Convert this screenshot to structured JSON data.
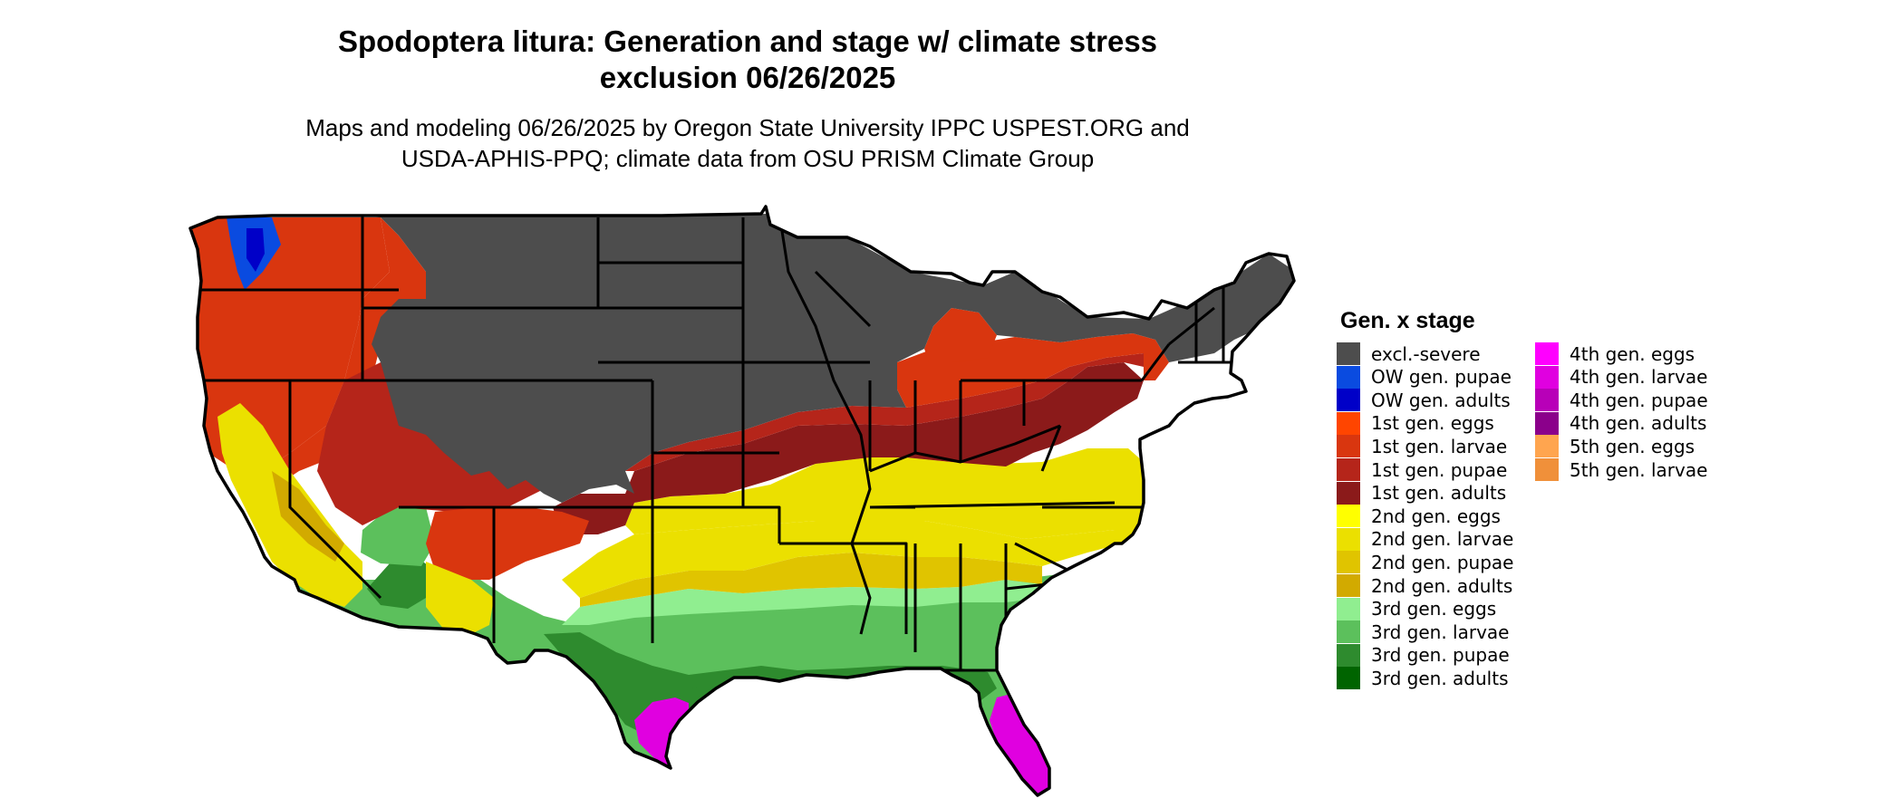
{
  "title_line1": "Spodoptera litura: Generation and stage w/ climate stress",
  "title_line2": "exclusion 06/26/2025",
  "subtitle_line1": "Maps and modeling 06/26/2025 by Oregon State University IPPC USPEST.ORG and",
  "subtitle_line2": "USDA-APHIS-PPQ; climate data from OSU PRISM Climate Group",
  "legend": {
    "title": "Gen. x stage",
    "items": [
      {
        "label": "excl.-severe",
        "color": "#4d4d4d"
      },
      {
        "label": "OW gen. pupae",
        "color": "#0a4be0"
      },
      {
        "label": "OW gen. adults",
        "color": "#0000c8"
      },
      {
        "label": "1st gen. eggs",
        "color": "#ff4500"
      },
      {
        "label": "1st gen. larvae",
        "color": "#d9360f"
      },
      {
        "label": "1st gen. pupae",
        "color": "#b5251a"
      },
      {
        "label": "1st gen. adults",
        "color": "#8b1a1a"
      },
      {
        "label": "2nd gen. eggs",
        "color": "#ffff00"
      },
      {
        "label": "2nd gen. larvae",
        "color": "#ebe000"
      },
      {
        "label": "2nd gen. pupae",
        "color": "#e0c400"
      },
      {
        "label": "2nd gen. adults",
        "color": "#d2aa00"
      },
      {
        "label": "3rd gen. eggs",
        "color": "#90ee90"
      },
      {
        "label": "3rd gen. larvae",
        "color": "#5cc05c"
      },
      {
        "label": "3rd gen. pupae",
        "color": "#2e8b2e"
      },
      {
        "label": "3rd gen. adults",
        "color": "#006400"
      },
      {
        "label": "4th gen. eggs",
        "color": "#ff00ff"
      },
      {
        "label": "4th gen. larvae",
        "color": "#e000e0"
      },
      {
        "label": "4th gen. pupae",
        "color": "#b800b8"
      },
      {
        "label": "4th gen. adults",
        "color": "#8b008b"
      },
      {
        "label": "5th gen. eggs",
        "color": "#ffa54f"
      },
      {
        "label": "5th gen. larvae",
        "color": "#f0903a"
      }
    ]
  }
}
